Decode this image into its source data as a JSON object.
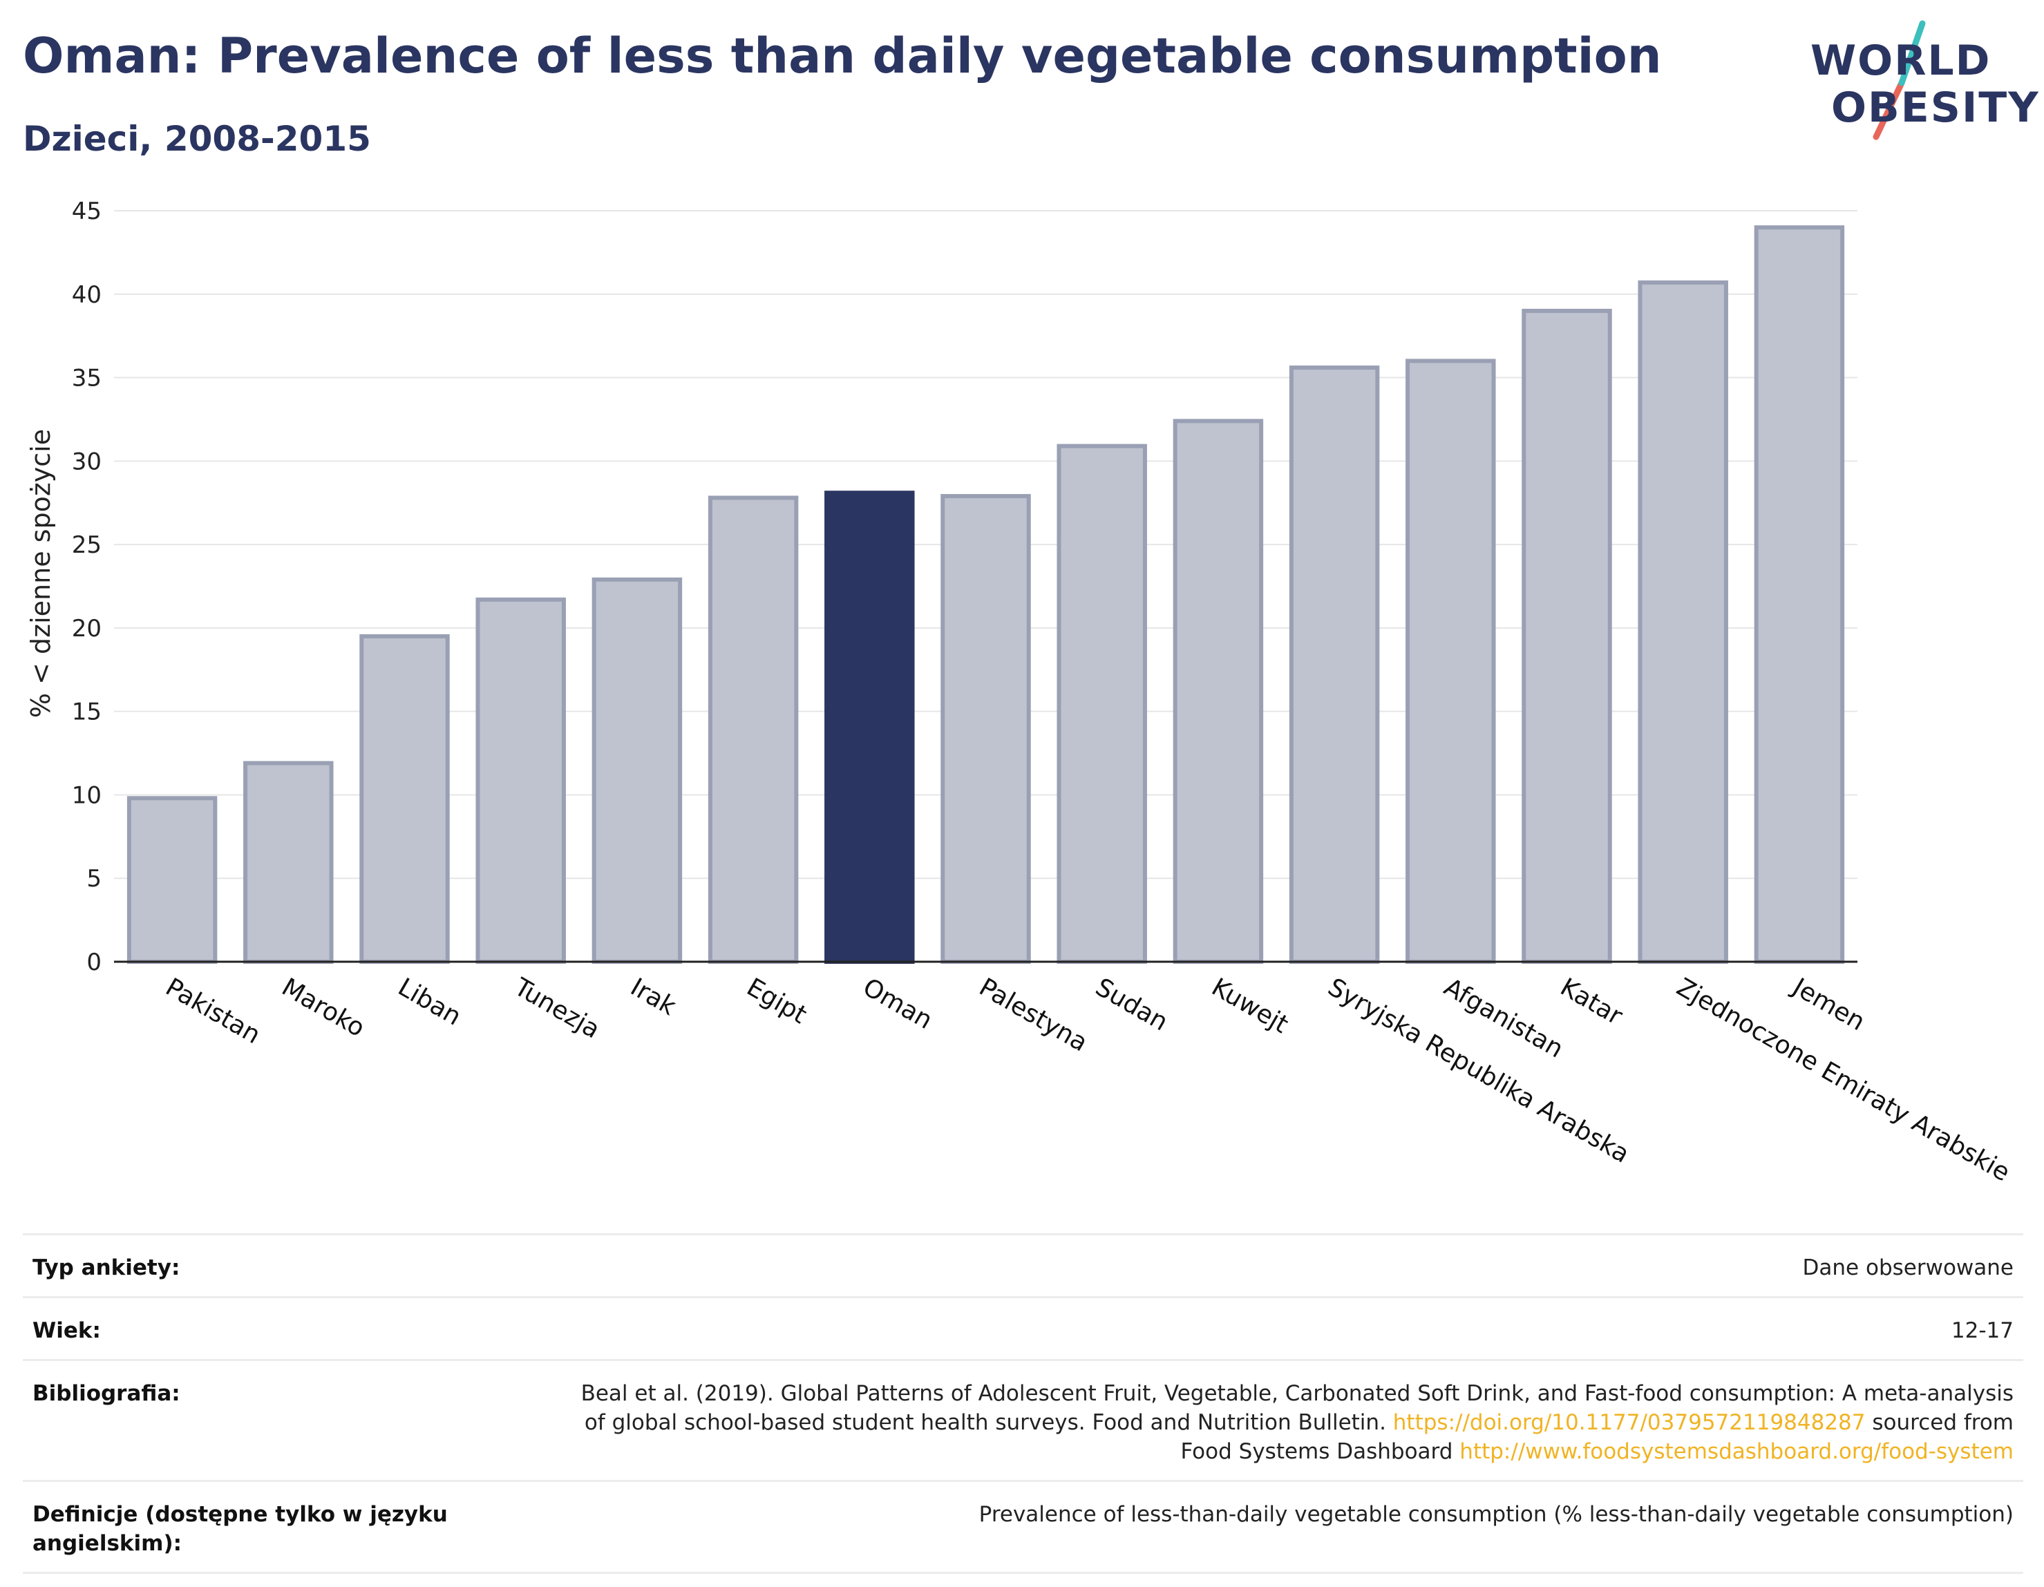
{
  "header": {
    "title": "Oman: Prevalence of less than daily vegetable consumption",
    "subtitle": "Dzieci, 2008-2015"
  },
  "logo": {
    "line1": "WORLD",
    "line2": "OBESITY"
  },
  "colors": {
    "highlight": "#2b3561",
    "bar": "#bfc3cf",
    "bar_edge": "#9aa0b4",
    "accent_teal": "#3dbfbd",
    "accent_red": "#e8665a",
    "link": "#f0b323"
  },
  "chart_data": {
    "type": "bar",
    "title": "Oman: Prevalence of less than daily vegetable consumption",
    "subtitle": "Dzieci, 2008-2015",
    "xlabel": "",
    "ylabel": "% < dzienne spożycie",
    "ylim": [
      0,
      45
    ],
    "yticks": [
      0,
      5,
      10,
      15,
      20,
      25,
      30,
      35,
      40,
      45
    ],
    "grid": true,
    "highlight": "Oman",
    "categories": [
      "Pakistan",
      "Maroko",
      "Liban",
      "Tunezja",
      "Irak",
      "Egipt",
      "Oman",
      "Palestyna",
      "Sudan",
      "Kuwejt",
      "Syryjska Republika Arabska",
      "Afganistan",
      "Katar",
      "Zjednoczone Emiraty Arabskie",
      "Jemen"
    ],
    "values": [
      9.8,
      11.9,
      19.5,
      21.7,
      22.9,
      27.8,
      28.1,
      27.9,
      30.9,
      32.4,
      35.6,
      36.0,
      39.0,
      40.7,
      44.0
    ]
  },
  "meta": {
    "survey_type_label": "Typ ankiety:",
    "survey_type_value": "Dane obserwowane",
    "age_label": "Wiek:",
    "age_value": "12-17",
    "bibliography_label": "Bibliografia:",
    "bibliography_line1": "Beal et al. (2019). Global Patterns of Adolescent Fruit, Vegetable, Carbonated Soft Drink, and Fast-food consumption: A meta-analysis",
    "bibliography_line2_pre": "of global school-based student health surveys. Food and Nutrition Bulletin.",
    "bibliography_doi": "https://doi.org/10.1177/0379572119848287",
    "bibliography_line2_post": "sourced from",
    "bibliography_line3_pre": "Food Systems Dashboard",
    "bibliography_url": "http://www.foodsystemsdashboard.org/food-system",
    "definitions_label": "Definicje (dostępne tylko w języku angielskim):",
    "definitions_value": "Prevalence of less-than-daily vegetable consumption (% less-than-daily vegetable consumption)"
  }
}
